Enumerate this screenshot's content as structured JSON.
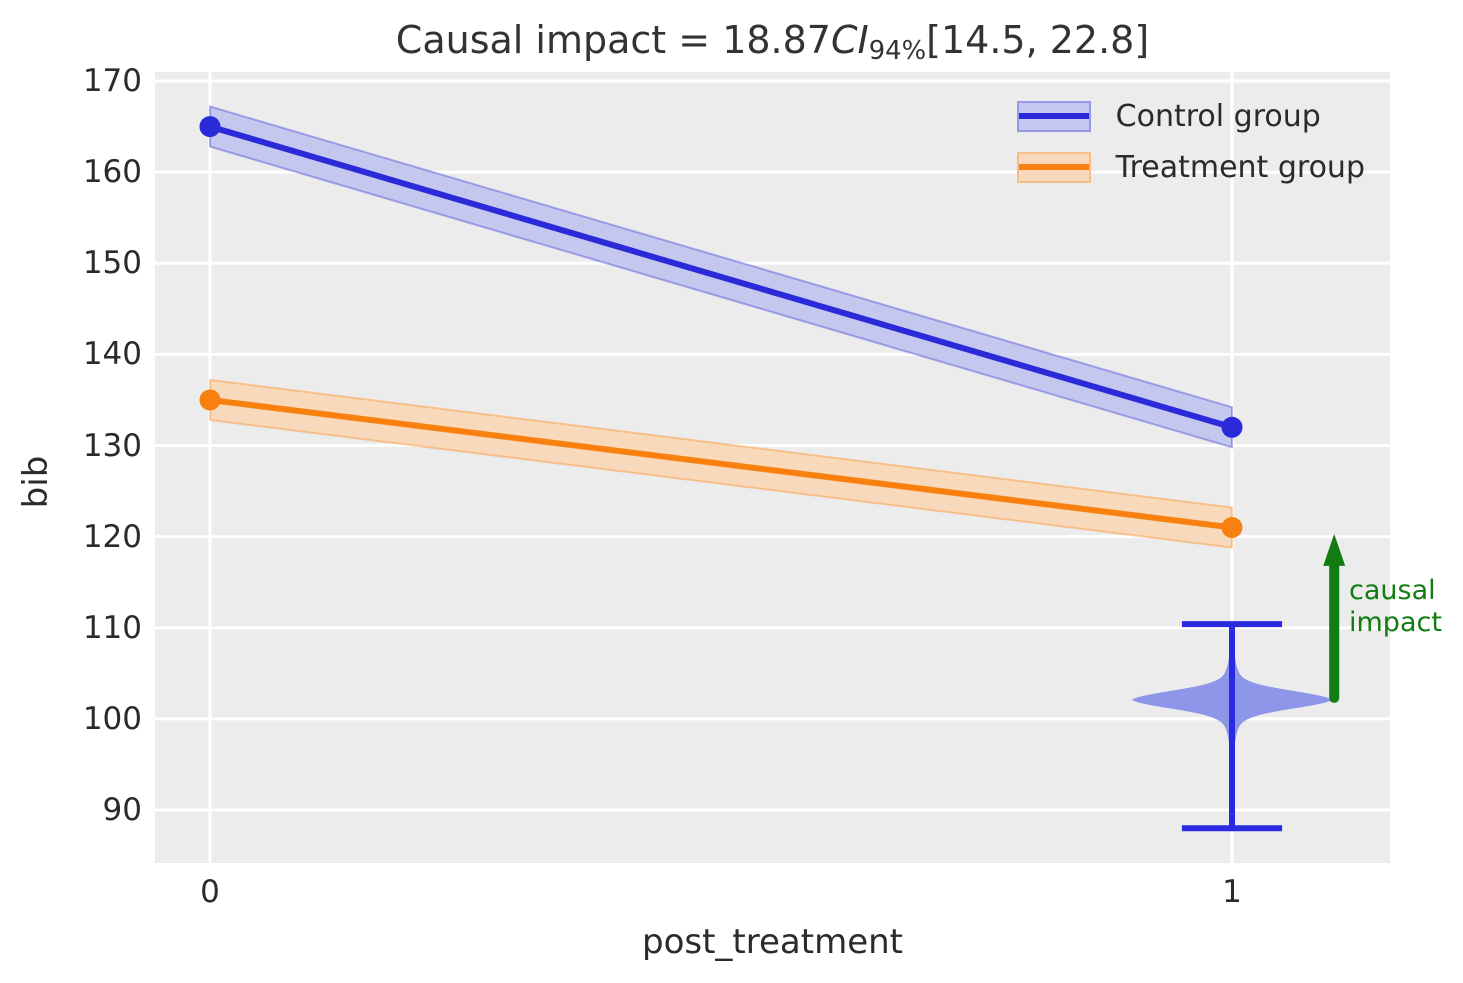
{
  "figure": {
    "title": {
      "prefix": "Causal impact = 18.87",
      "ci_label": "CI",
      "ci_sub": "94%",
      "interval": "[14.5, 22.8]"
    }
  },
  "chart_data": {
    "type": "line",
    "title": "Causal impact = 18.87 CI 94% [14.5, 22.8]",
    "xlabel": "post_treatment",
    "ylabel": "bib",
    "x": [
      0,
      1
    ],
    "xtick_labels": [
      "0",
      "1"
    ],
    "yticks": [
      90,
      100,
      110,
      120,
      130,
      140,
      150,
      160,
      170
    ],
    "xlim": [
      -0.054,
      1.155
    ],
    "ylim": [
      84.2,
      171.0
    ],
    "grid": true,
    "background_color": "#ececec",
    "gridline_color": "#ffffff",
    "legend_position": "upper right",
    "series": [
      {
        "name": "Control group",
        "values": [
          165,
          132
        ],
        "ci_low": [
          162.8,
          129.8
        ],
        "ci_high": [
          167.2,
          134.2
        ],
        "color": "#2a2ad9",
        "band_color": "#c4c7ee"
      },
      {
        "name": "Treatment group",
        "values": [
          135,
          121
        ],
        "ci_low": [
          132.8,
          118.8
        ],
        "ci_high": [
          137.2,
          123.2
        ],
        "color": "#f8800f",
        "band_color": "#f8d9bc"
      }
    ],
    "violin": {
      "x": 1.0,
      "peak": 102.1,
      "whisker_low": 88.0,
      "whisker_high": 110.4,
      "max_half_width": 0.098,
      "cap_half_width": 0.049,
      "fill_color": "#8d96e9",
      "line_color": "#2a2ae0"
    },
    "arrow": {
      "x": 1.1,
      "y_from": 102.3,
      "y_to": 120.3,
      "color": "#117c11",
      "label_line1": "causal",
      "label_line2": "impact"
    }
  }
}
